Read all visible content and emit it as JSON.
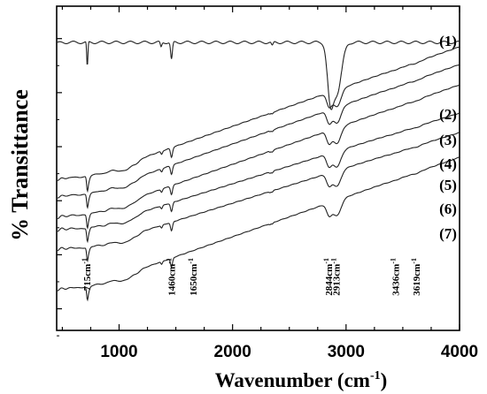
{
  "chart_data": {
    "type": "line",
    "xlabel": "Wavenumber (cm",
    "xlabel_sup": "-1",
    "xlabel_close": ")",
    "ylabel": "% Transittance",
    "xlim": [
      450,
      4000
    ],
    "x_ticks": [
      1000,
      2000,
      3000,
      4000
    ],
    "x_tick_labels": [
      "1000",
      "2000",
      "3000",
      "4000"
    ],
    "y_ticks_count": 6,
    "grid": false,
    "series": [
      {
        "name": "(1)",
        "offset": 0
      },
      {
        "name": "(2)",
        "offset": 1
      },
      {
        "name": "(3)",
        "offset": 2
      },
      {
        "name": "(4)",
        "offset": 3
      },
      {
        "name": "(5)",
        "offset": 4
      },
      {
        "name": "(6)",
        "offset": 5
      },
      {
        "name": "(7)",
        "offset": 6
      }
    ],
    "annotations": [
      {
        "label": "715cm",
        "sup": "-1",
        "x": 715
      },
      {
        "label": "1460cm",
        "sup": "-1",
        "x": 1460
      },
      {
        "label": "1650cm",
        "sup": "-1",
        "x": 1650
      },
      {
        "label": "2844cm",
        "sup": "-1",
        "x": 2844
      },
      {
        "label": "2913cm",
        "sup": "-1",
        "x": 2913
      },
      {
        "label": "3436cm",
        "sup": "-1",
        "x": 3436
      },
      {
        "label": "3619cm",
        "sup": "-1",
        "x": 3619
      }
    ]
  }
}
